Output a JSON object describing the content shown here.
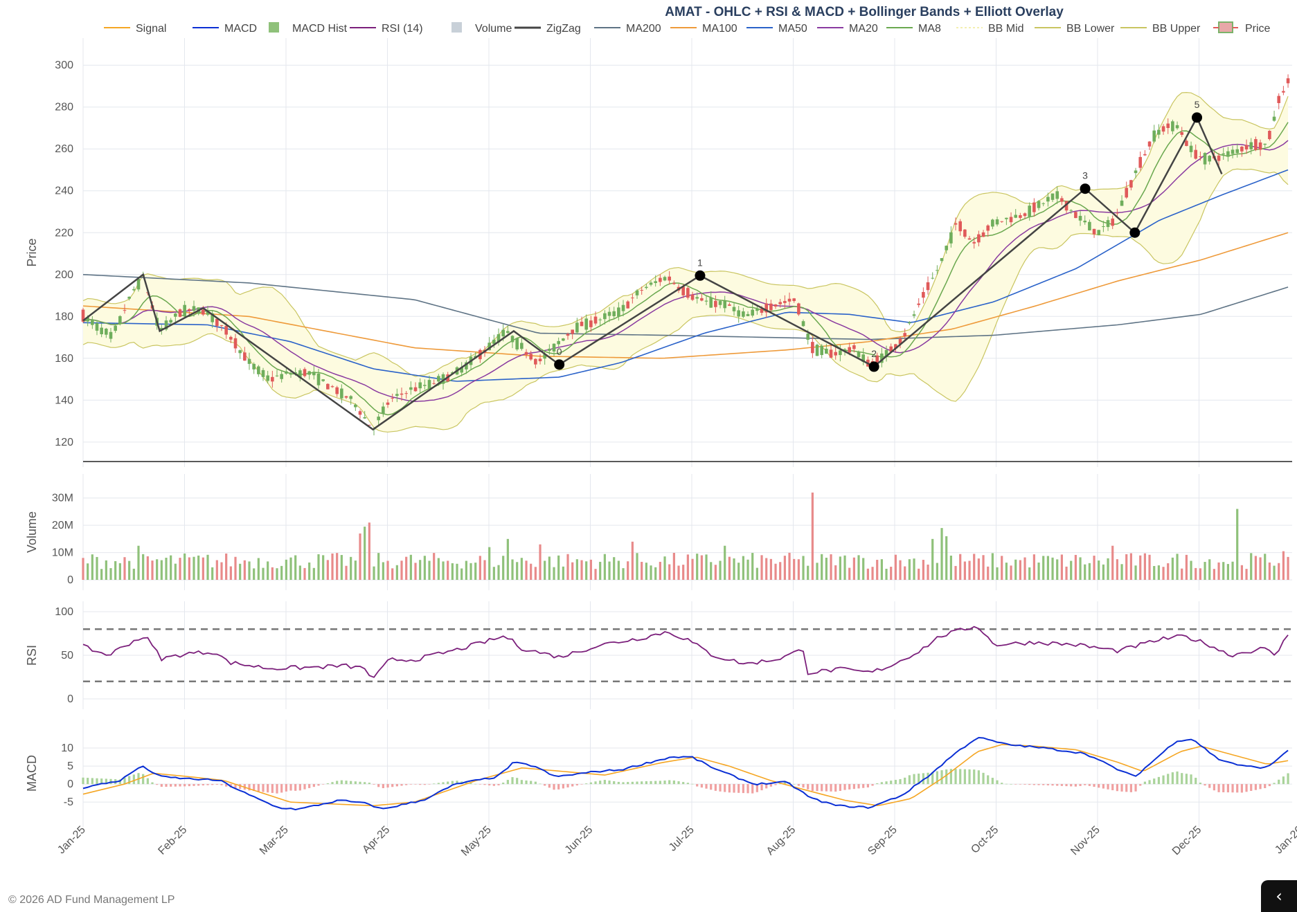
{
  "copyright": "© 2026 AD Fund Management LP",
  "corner_icon": "chevron-left-icon",
  "chart_data": {
    "type": "candlestick",
    "title": "AMAT - OHLC + RSI & MACD + Bollinger Bands + Elliott Overlay",
    "legend": {
      "placement": "top",
      "entries": [
        {
          "name": "Signal",
          "color": "#f5a623",
          "kind": "line"
        },
        {
          "name": "MACD",
          "color": "#0a2fd4",
          "kind": "line"
        },
        {
          "name": "MACD Hist",
          "color": "#8fc17a",
          "kind": "box"
        },
        {
          "name": "RSI (14)",
          "color": "#7b1f7b",
          "kind": "line"
        },
        {
          "name": "Volume",
          "color": "#c8d0d8",
          "kind": "box"
        },
        {
          "name": "ZigZag",
          "color": "#444444",
          "kind": "line"
        },
        {
          "name": "MA200",
          "color": "#5e7385",
          "kind": "line"
        },
        {
          "name": "MA100",
          "color": "#ee9a3a",
          "kind": "line"
        },
        {
          "name": "MA50",
          "color": "#2a62c9",
          "kind": "line"
        },
        {
          "name": "MA20",
          "color": "#8a3aa0",
          "kind": "line"
        },
        {
          "name": "MA8",
          "color": "#6aa84f",
          "kind": "line"
        },
        {
          "name": "BB Mid",
          "color": "#f3efb0",
          "kind": "dash"
        },
        {
          "name": "BB Lower",
          "color": "#c9c560",
          "kind": "line"
        },
        {
          "name": "BB Upper",
          "color": "#c9c560",
          "kind": "line"
        },
        {
          "name": "Price",
          "color": "#e05a5a",
          "kind": "candle"
        }
      ]
    },
    "x_ticks": [
      "Jan-25",
      "Feb-25",
      "Mar-25",
      "Apr-25",
      "May-25",
      "Jun-25",
      "Jul-25",
      "Aug-25",
      "Sep-25",
      "Oct-25",
      "Nov-25",
      "Dec-25",
      "Jan-26"
    ],
    "panels": {
      "price": {
        "ylabel": "Price",
        "ylim": [
          113,
          308
        ],
        "yticks": [
          120,
          140,
          160,
          180,
          200,
          220,
          240,
          260,
          280,
          300
        ]
      },
      "volume": {
        "ylabel": "Volume",
        "ylim": [
          0,
          35
        ],
        "yticks": [
          0,
          10,
          20,
          30
        ],
        "tick_labels": [
          "0",
          "10M",
          "20M",
          "30M"
        ]
      },
      "rsi": {
        "ylabel": "RSI",
        "ylim": [
          0,
          100
        ],
        "yticks": [
          0,
          50,
          100
        ],
        "levels": [
          80,
          20
        ]
      },
      "macd": {
        "ylabel": "MACD",
        "ylim": [
          -9,
          15
        ],
        "yticks": [
          -5,
          0,
          5,
          10
        ]
      }
    },
    "price_anchors": [
      {
        "t": 0.0,
        "p": 180
      },
      {
        "t": 0.7,
        "p": 170
      },
      {
        "t": 1.2,
        "p": 192
      },
      {
        "t": 1.45,
        "p": 199
      },
      {
        "t": 1.85,
        "p": 173
      },
      {
        "t": 2.4,
        "p": 183
      },
      {
        "t": 2.95,
        "p": 183
      },
      {
        "t": 3.5,
        "p": 172
      },
      {
        "t": 4.0,
        "p": 158
      },
      {
        "t": 4.5,
        "p": 150
      },
      {
        "t": 5.0,
        "p": 153
      },
      {
        "t": 5.5,
        "p": 153
      },
      {
        "t": 6.0,
        "p": 146
      },
      {
        "t": 6.5,
        "p": 140
      },
      {
        "t": 7.0,
        "p": 126
      },
      {
        "t": 7.4,
        "p": 140
      },
      {
        "t": 7.9,
        "p": 145
      },
      {
        "t": 8.4,
        "p": 148
      },
      {
        "t": 9.0,
        "p": 153
      },
      {
        "t": 9.6,
        "p": 162
      },
      {
        "t": 10.2,
        "p": 173
      },
      {
        "t": 10.6,
        "p": 165
      },
      {
        "t": 11.0,
        "p": 158
      },
      {
        "t": 11.4,
        "p": 166
      },
      {
        "t": 11.9,
        "p": 175
      },
      {
        "t": 12.4,
        "p": 178
      },
      {
        "t": 13.0,
        "p": 183
      },
      {
        "t": 13.5,
        "p": 193
      },
      {
        "t": 14.1,
        "p": 199
      },
      {
        "t": 14.5,
        "p": 192
      },
      {
        "t": 15.0,
        "p": 187
      },
      {
        "t": 15.5,
        "p": 186
      },
      {
        "t": 16.0,
        "p": 180
      },
      {
        "t": 16.6,
        "p": 185
      },
      {
        "t": 17.2,
        "p": 188
      },
      {
        "t": 17.6,
        "p": 165
      },
      {
        "t": 18.1,
        "p": 162
      },
      {
        "t": 18.6,
        "p": 165
      },
      {
        "t": 19.0,
        "p": 157
      },
      {
        "t": 19.4,
        "p": 162
      },
      {
        "t": 19.8,
        "p": 170
      },
      {
        "t": 20.3,
        "p": 190
      },
      {
        "t": 20.7,
        "p": 205
      },
      {
        "t": 21.1,
        "p": 225
      },
      {
        "t": 21.5,
        "p": 215
      },
      {
        "t": 22.0,
        "p": 225
      },
      {
        "t": 22.6,
        "p": 228
      },
      {
        "t": 23.0,
        "p": 232
      },
      {
        "t": 23.5,
        "p": 238
      },
      {
        "t": 24.0,
        "p": 228
      },
      {
        "t": 24.5,
        "p": 220
      },
      {
        "t": 24.9,
        "p": 226
      },
      {
        "t": 25.4,
        "p": 248
      },
      {
        "t": 25.9,
        "p": 268
      },
      {
        "t": 26.4,
        "p": 272
      },
      {
        "t": 26.8,
        "p": 258
      },
      {
        "t": 27.2,
        "p": 255
      },
      {
        "t": 27.7,
        "p": 258
      },
      {
        "t": 28.2,
        "p": 262
      },
      {
        "t": 28.6,
        "p": 262
      },
      {
        "t": 28.9,
        "p": 285
      },
      {
        "t": 29.1,
        "p": 292
      }
    ],
    "zigzag": [
      {
        "t": 0.0,
        "p": 178,
        "label": ""
      },
      {
        "t": 1.45,
        "p": 200,
        "label": ""
      },
      {
        "t": 1.85,
        "p": 173,
        "label": ""
      },
      {
        "t": 2.9,
        "p": 184,
        "label": ""
      },
      {
        "t": 7.0,
        "p": 126,
        "label": ""
      },
      {
        "t": 10.4,
        "p": 173,
        "label": ""
      },
      {
        "t": 11.5,
        "p": 157,
        "label": "0",
        "dot": true
      },
      {
        "t": 14.9,
        "p": 199.5,
        "label": "1",
        "dot": true
      },
      {
        "t": 19.1,
        "p": 156,
        "label": "2",
        "dot": true
      },
      {
        "t": 24.2,
        "p": 241,
        "label": "3",
        "dot": true
      },
      {
        "t": 25.4,
        "p": 220,
        "label": "",
        "dot": true
      },
      {
        "t": 26.9,
        "p": 275,
        "label": "5",
        "dot": true
      },
      {
        "t": 27.5,
        "p": 248,
        "label": ""
      }
    ],
    "ma200": [
      {
        "t": 0,
        "p": 200
      },
      {
        "t": 4,
        "p": 196
      },
      {
        "t": 8,
        "p": 188
      },
      {
        "t": 11,
        "p": 172
      },
      {
        "t": 14,
        "p": 171
      },
      {
        "t": 19,
        "p": 169
      },
      {
        "t": 22,
        "p": 171
      },
      {
        "t": 25,
        "p": 176
      },
      {
        "t": 27,
        "p": 181
      },
      {
        "t": 29.1,
        "p": 194
      }
    ],
    "ma100": [
      {
        "t": 0,
        "p": 185
      },
      {
        "t": 4,
        "p": 180
      },
      {
        "t": 8,
        "p": 165
      },
      {
        "t": 11,
        "p": 161
      },
      {
        "t": 14,
        "p": 160
      },
      {
        "t": 17,
        "p": 164
      },
      {
        "t": 19,
        "p": 168
      },
      {
        "t": 21,
        "p": 174
      },
      {
        "t": 23,
        "p": 185
      },
      {
        "t": 25,
        "p": 197
      },
      {
        "t": 27,
        "p": 207
      },
      {
        "t": 29.1,
        "p": 220
      }
    ],
    "ma50": [
      {
        "t": 0,
        "p": 177
      },
      {
        "t": 3,
        "p": 176
      },
      {
        "t": 5,
        "p": 168
      },
      {
        "t": 7,
        "p": 155
      },
      {
        "t": 9,
        "p": 149
      },
      {
        "t": 11.5,
        "p": 151
      },
      {
        "t": 13,
        "p": 158
      },
      {
        "t": 15,
        "p": 172
      },
      {
        "t": 17,
        "p": 182
      },
      {
        "t": 18.5,
        "p": 181
      },
      {
        "t": 20,
        "p": 177
      },
      {
        "t": 22,
        "p": 187
      },
      {
        "t": 24,
        "p": 203
      },
      {
        "t": 26,
        "p": 226
      },
      {
        "t": 27.5,
        "p": 238
      },
      {
        "t": 29.1,
        "p": 250
      }
    ],
    "bb_upper_offset": 10,
    "bb_lower_offset": 11,
    "rsi_anchors": [
      {
        "t": 0,
        "p": 60
      },
      {
        "t": 0.6,
        "p": 50
      },
      {
        "t": 1.2,
        "p": 66
      },
      {
        "t": 1.5,
        "p": 72
      },
      {
        "t": 1.9,
        "p": 46
      },
      {
        "t": 2.5,
        "p": 52
      },
      {
        "t": 3.2,
        "p": 54
      },
      {
        "t": 3.5,
        "p": 42
      },
      {
        "t": 4.5,
        "p": 35
      },
      {
        "t": 5.5,
        "p": 36
      },
      {
        "t": 6.3,
        "p": 38
      },
      {
        "t": 6.8,
        "p": 35
      },
      {
        "t": 7.0,
        "p": 22
      },
      {
        "t": 7.4,
        "p": 45
      },
      {
        "t": 8.0,
        "p": 45
      },
      {
        "t": 9.0,
        "p": 56
      },
      {
        "t": 10.2,
        "p": 72
      },
      {
        "t": 10.6,
        "p": 58
      },
      {
        "t": 11.5,
        "p": 48
      },
      {
        "t": 12.5,
        "p": 62
      },
      {
        "t": 13.5,
        "p": 70
      },
      {
        "t": 14.1,
        "p": 77
      },
      {
        "t": 14.6,
        "p": 68
      },
      {
        "t": 15.2,
        "p": 50
      },
      {
        "t": 16.0,
        "p": 40
      },
      {
        "t": 16.8,
        "p": 46
      },
      {
        "t": 17.4,
        "p": 57
      },
      {
        "t": 17.5,
        "p": 30
      },
      {
        "t": 18.3,
        "p": 34
      },
      {
        "t": 19.0,
        "p": 30
      },
      {
        "t": 19.5,
        "p": 38
      },
      {
        "t": 20.2,
        "p": 55
      },
      {
        "t": 20.7,
        "p": 72
      },
      {
        "t": 21.3,
        "p": 80
      },
      {
        "t": 21.6,
        "p": 84
      },
      {
        "t": 22.0,
        "p": 62
      },
      {
        "t": 23.0,
        "p": 65
      },
      {
        "t": 24.0,
        "p": 62
      },
      {
        "t": 25.0,
        "p": 55
      },
      {
        "t": 26.0,
        "p": 68
      },
      {
        "t": 26.6,
        "p": 72
      },
      {
        "t": 27.2,
        "p": 62
      },
      {
        "t": 27.7,
        "p": 50
      },
      {
        "t": 28.5,
        "p": 58
      },
      {
        "t": 28.8,
        "p": 50
      },
      {
        "t": 29.1,
        "p": 74
      }
    ],
    "macd_anchors": [
      {
        "t": 0,
        "p": -1
      },
      {
        "t": 0.9,
        "p": 1
      },
      {
        "t": 1.4,
        "p": 5
      },
      {
        "t": 1.9,
        "p": 2
      },
      {
        "t": 2.5,
        "p": 1.5
      },
      {
        "t": 3.3,
        "p": 1
      },
      {
        "t": 4.0,
        "p": -3
      },
      {
        "t": 4.7,
        "p": -6.5
      },
      {
        "t": 5.2,
        "p": -7
      },
      {
        "t": 6.2,
        "p": -4.5
      },
      {
        "t": 6.9,
        "p": -5.5
      },
      {
        "t": 7.2,
        "p": -7
      },
      {
        "t": 8.2,
        "p": -4.5
      },
      {
        "t": 9.0,
        "p": 0
      },
      {
        "t": 10.0,
        "p": 2
      },
      {
        "t": 10.4,
        "p": 6
      },
      {
        "t": 10.9,
        "p": 5
      },
      {
        "t": 11.4,
        "p": 2
      },
      {
        "t": 12.4,
        "p": 3.5
      },
      {
        "t": 13.0,
        "p": 4
      },
      {
        "t": 13.5,
        "p": 5.5
      },
      {
        "t": 14.2,
        "p": 7.5
      },
      {
        "t": 14.7,
        "p": 7.5
      },
      {
        "t": 15.3,
        "p": 4
      },
      {
        "t": 16.2,
        "p": 0
      },
      {
        "t": 17.0,
        "p": 0.5
      },
      {
        "t": 17.6,
        "p": -4
      },
      {
        "t": 18.2,
        "p": -6
      },
      {
        "t": 19.0,
        "p": -6.5
      },
      {
        "t": 19.8,
        "p": -3
      },
      {
        "t": 20.5,
        "p": 3
      },
      {
        "t": 21.0,
        "p": 8
      },
      {
        "t": 21.6,
        "p": 13
      },
      {
        "t": 22.3,
        "p": 11
      },
      {
        "t": 23.2,
        "p": 10
      },
      {
        "t": 24.2,
        "p": 8.5
      },
      {
        "t": 25.0,
        "p": 4
      },
      {
        "t": 25.4,
        "p": 2
      },
      {
        "t": 26.4,
        "p": 12
      },
      {
        "t": 26.8,
        "p": 12.5
      },
      {
        "t": 27.4,
        "p": 7
      },
      {
        "t": 28.0,
        "p": 5
      },
      {
        "t": 28.6,
        "p": 4.5
      },
      {
        "t": 29.1,
        "p": 9.5
      }
    ],
    "signal_anchors": [
      {
        "t": 0,
        "p": -2.8
      },
      {
        "t": 1.0,
        "p": 0
      },
      {
        "t": 1.7,
        "p": 3
      },
      {
        "t": 2.6,
        "p": 2
      },
      {
        "t": 3.4,
        "p": 1
      },
      {
        "t": 4.2,
        "p": -2
      },
      {
        "t": 5.0,
        "p": -5
      },
      {
        "t": 6.0,
        "p": -5.5
      },
      {
        "t": 7.0,
        "p": -6
      },
      {
        "t": 8.0,
        "p": -5
      },
      {
        "t": 9.5,
        "p": 1
      },
      {
        "t": 10.6,
        "p": 4.5
      },
      {
        "t": 11.6,
        "p": 3.5
      },
      {
        "t": 12.6,
        "p": 2.5
      },
      {
        "t": 14.0,
        "p": 6
      },
      {
        "t": 14.8,
        "p": 7.5
      },
      {
        "t": 15.6,
        "p": 5
      },
      {
        "t": 16.6,
        "p": 1
      },
      {
        "t": 17.4,
        "p": -1.5
      },
      {
        "t": 18.4,
        "p": -4.5
      },
      {
        "t": 19.2,
        "p": -6
      },
      {
        "t": 20.0,
        "p": -4
      },
      {
        "t": 20.8,
        "p": 2
      },
      {
        "t": 21.6,
        "p": 9
      },
      {
        "t": 22.2,
        "p": 11
      },
      {
        "t": 23.0,
        "p": 10.5
      },
      {
        "t": 24.0,
        "p": 9.5
      },
      {
        "t": 25.0,
        "p": 6
      },
      {
        "t": 25.6,
        "p": 3.5
      },
      {
        "t": 26.5,
        "p": 9
      },
      {
        "t": 27.0,
        "p": 10.5
      },
      {
        "t": 27.8,
        "p": 8
      },
      {
        "t": 28.6,
        "p": 5.5
      },
      {
        "t": 29.1,
        "p": 6.5
      }
    ],
    "volume_spikes": [
      {
        "t": 1.35,
        "v": 12.5
      },
      {
        "t": 6.7,
        "v": 17
      },
      {
        "t": 6.8,
        "v": 19.5
      },
      {
        "t": 6.9,
        "v": 21
      },
      {
        "t": 9.8,
        "v": 12
      },
      {
        "t": 10.3,
        "v": 15
      },
      {
        "t": 11.0,
        "v": 13
      },
      {
        "t": 13.3,
        "v": 14
      },
      {
        "t": 15.5,
        "v": 12.5
      },
      {
        "t": 17.6,
        "v": 32
      },
      {
        "t": 20.5,
        "v": 15
      },
      {
        "t": 20.7,
        "v": 19
      },
      {
        "t": 20.9,
        "v": 16
      },
      {
        "t": 24.9,
        "v": 12.5
      },
      {
        "t": 27.9,
        "v": 26
      },
      {
        "t": 29.0,
        "v": 10.5
      }
    ]
  }
}
